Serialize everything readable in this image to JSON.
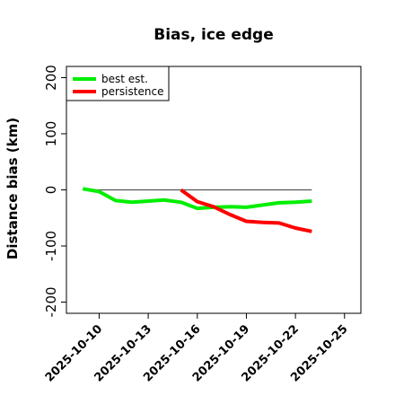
{
  "chart_data": {
    "type": "line",
    "title": "Bias, ice edge",
    "xlabel": "",
    "ylabel": "Distance bias (km)",
    "ylim": [
      -220,
      220
    ],
    "yticks": [
      -200,
      -100,
      0,
      100,
      200
    ],
    "xlim": [
      "2025-10-08",
      "2025-10-26"
    ],
    "xticks": [
      "2025-10-10",
      "2025-10-13",
      "2025-10-16",
      "2025-10-19",
      "2025-10-22",
      "2025-10-25"
    ],
    "reference_line": {
      "y": 0,
      "from": "2025-10-09",
      "to": "2025-10-23",
      "color": "#555555"
    },
    "legend_position": "top-left",
    "grid": false,
    "series": [
      {
        "name": "best est.",
        "color": "#00ee00",
        "points": [
          {
            "x": "2025-10-09",
            "y": 2
          },
          {
            "x": "2025-10-10",
            "y": -3
          },
          {
            "x": "2025-10-11",
            "y": -19
          },
          {
            "x": "2025-10-12",
            "y": -22
          },
          {
            "x": "2025-10-13",
            "y": -20
          },
          {
            "x": "2025-10-14",
            "y": -18
          },
          {
            "x": "2025-10-15",
            "y": -22
          },
          {
            "x": "2025-10-16",
            "y": -33
          },
          {
            "x": "2025-10-17",
            "y": -31
          },
          {
            "x": "2025-10-18",
            "y": -30
          },
          {
            "x": "2025-10-19",
            "y": -31
          },
          {
            "x": "2025-10-20",
            "y": -27
          },
          {
            "x": "2025-10-21",
            "y": -23
          },
          {
            "x": "2025-10-22",
            "y": -22
          },
          {
            "x": "2025-10-23",
            "y": -20
          }
        ]
      },
      {
        "name": "persistence",
        "color": "#ff0000",
        "points": [
          {
            "x": "2025-10-15",
            "y": 0
          },
          {
            "x": "2025-10-16",
            "y": -21
          },
          {
            "x": "2025-10-17",
            "y": -30
          },
          {
            "x": "2025-10-18",
            "y": -44
          },
          {
            "x": "2025-10-19",
            "y": -56
          },
          {
            "x": "2025-10-20",
            "y": -58
          },
          {
            "x": "2025-10-21",
            "y": -59
          },
          {
            "x": "2025-10-22",
            "y": -68
          },
          {
            "x": "2025-10-23",
            "y": -74
          }
        ]
      }
    ]
  }
}
